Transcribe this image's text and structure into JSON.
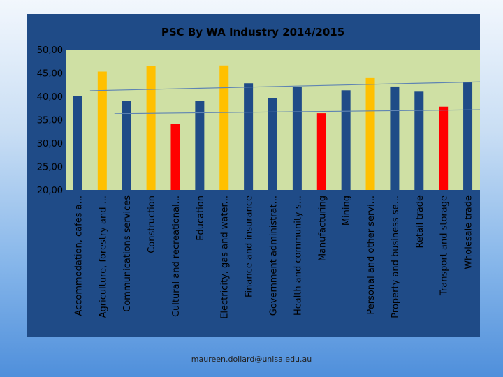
{
  "chart_data": {
    "type": "bar",
    "title": "PSC By WA Industry 2014/2015",
    "categories": [
      "Accommodation, cafes a...",
      "Agriculture, forestry and ...",
      "Communications services",
      "Construction",
      "Cultural and recreational...",
      "Education",
      "Electricity, gas and water...",
      "Finance and insurance",
      "Government administrat...",
      "Health and community s...",
      "Manufacturing",
      "Mining",
      "Personal and other servi...",
      "Property and business se...",
      "Retail trade",
      "Transport and storage",
      "Wholesale trade"
    ],
    "values": [
      40.0,
      45.3,
      39.1,
      46.5,
      34.1,
      39.1,
      46.6,
      42.8,
      39.6,
      42.0,
      36.4,
      41.3,
      43.9,
      42.1,
      41.0,
      37.8,
      43.1
    ],
    "bar_colors": [
      "#1f4b87",
      "#ffc000",
      "#1f4b87",
      "#ffc000",
      "#ff0000",
      "#1f4b87",
      "#ffc000",
      "#1f4b87",
      "#1f4b87",
      "#1f4b87",
      "#ff0000",
      "#1f4b87",
      "#ffc000",
      "#1f4b87",
      "#1f4b87",
      "#ff0000",
      "#1f4b87"
    ],
    "yticks": [
      "20,00",
      "25,00",
      "30,00",
      "35,00",
      "40,00",
      "45,00",
      "50,00"
    ],
    "ylim": [
      20,
      50
    ],
    "grid": false,
    "plot_background": "#cfe0a4",
    "reference_lines": [
      {
        "from": [
          1,
          41.2
        ],
        "to": [
          17,
          43.1
        ]
      },
      {
        "from": [
          2,
          36.3
        ],
        "to": [
          18,
          37.2
        ]
      }
    ]
  },
  "footer": {
    "email": "maureen.dollard@unisa.edu.au"
  }
}
